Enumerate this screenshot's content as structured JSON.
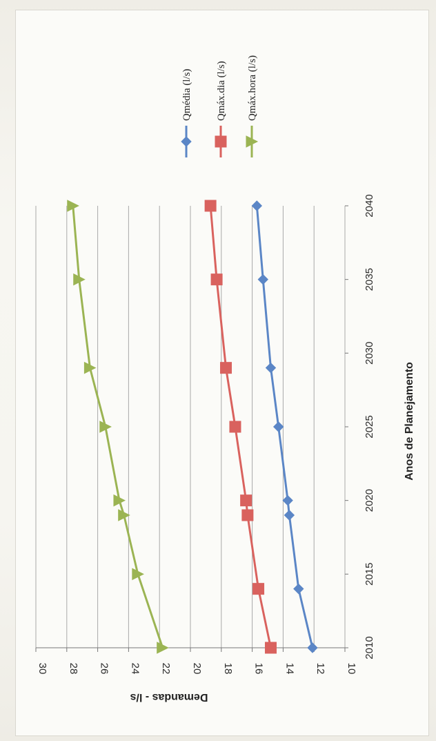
{
  "chart_data": {
    "type": "line",
    "xlabel": "Anos de Planejamento",
    "ylabel": "Demandas - l/s",
    "xlim": [
      2010,
      2040
    ],
    "ylim": [
      10,
      30
    ],
    "x_ticks": [
      "2010",
      "2015",
      "2020",
      "2025",
      "2030",
      "2035",
      "2040"
    ],
    "y_ticks": [
      "10",
      "12",
      "14",
      "16",
      "18",
      "20",
      "22",
      "24",
      "26",
      "28",
      "30"
    ],
    "grid": "horizontal",
    "legend_position": "right",
    "orientation": "rotated 90° (reads bottom-to-top)",
    "series": [
      {
        "name": "Qmédia (l/s)",
        "color": "#5b86c6",
        "marker": "diamond",
        "x": [
          2010,
          2014,
          2019,
          2020,
          2025,
          2029,
          2035,
          2040
        ],
        "y": [
          12.1,
          13.0,
          13.6,
          13.7,
          14.3,
          14.8,
          15.3,
          15.7
        ]
      },
      {
        "name": "Qmáx.dia (l/s)",
        "color": "#d9625e",
        "marker": "square",
        "x": [
          2010,
          2014,
          2019,
          2020,
          2025,
          2029,
          2035,
          2040
        ],
        "y": [
          14.8,
          15.6,
          16.3,
          16.4,
          17.1,
          17.7,
          18.3,
          18.7
        ]
      },
      {
        "name": "Qmáx.hora (l/s)",
        "color": "#9bb453",
        "marker": "triangle",
        "x": [
          2010,
          2015,
          2019,
          2020,
          2025,
          2029,
          2035,
          2040
        ],
        "y": [
          21.8,
          23.4,
          24.3,
          24.6,
          25.5,
          26.5,
          27.2,
          27.6
        ]
      }
    ]
  }
}
